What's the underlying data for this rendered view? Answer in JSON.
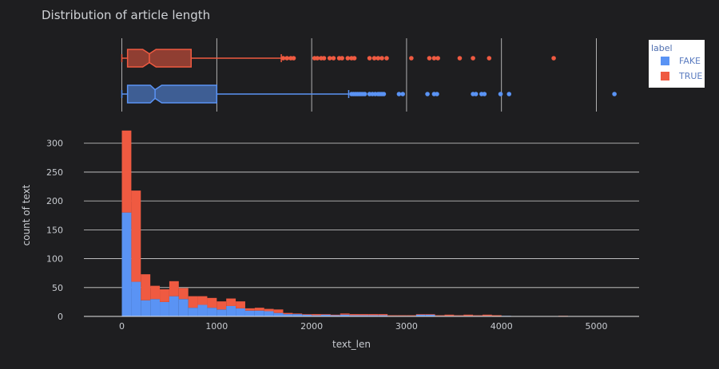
{
  "chart_data": {
    "type": "bar",
    "title": "Distribution of article length",
    "xlabel": "text_len",
    "ylabel": "count of text",
    "xlim": [
      -400,
      5450
    ],
    "ylim": [
      0,
      330
    ],
    "x_ticks": [
      0,
      1000,
      2000,
      3000,
      4000,
      5000
    ],
    "x_tick_labels": [
      "0",
      "1000",
      "2000",
      "3000",
      "4000",
      "5000"
    ],
    "y_ticks": [
      0,
      50,
      100,
      150,
      200,
      250,
      300
    ],
    "y_tick_labels": [
      "0",
      "50",
      "100",
      "150",
      "200",
      "250",
      "300"
    ],
    "barmode": "stack",
    "bin_start": 0,
    "bin_width": 100,
    "grid": true,
    "legend": {
      "title": "label",
      "placement": "top-right"
    },
    "series": [
      {
        "name": "FAKE",
        "color": "#636efa",
        "bar_color": "#5a93f4",
        "values": [
          180,
          60,
          28,
          30,
          25,
          35,
          30,
          15,
          20,
          15,
          12,
          18,
          14,
          10,
          10,
          9,
          6,
          4,
          4,
          3,
          2,
          3,
          2,
          3,
          2,
          2,
          2,
          2,
          1,
          1,
          1,
          3,
          3,
          1,
          1,
          1,
          1,
          1,
          1,
          0,
          1,
          0,
          0,
          0,
          0,
          0,
          0,
          0,
          0,
          0,
          0,
          0
        ]
      },
      {
        "name": "TRUE",
        "color": "#ef553b",
        "bar_color": "#ef5a41",
        "values": [
          142,
          158,
          45,
          23,
          22,
          26,
          19,
          20,
          15,
          17,
          14,
          13,
          12,
          4,
          5,
          4,
          6,
          2,
          1,
          1,
          2,
          1,
          1,
          2,
          2,
          2,
          2,
          2,
          1,
          1,
          1,
          1,
          1,
          1,
          2,
          1,
          2,
          1,
          2,
          2,
          0,
          0,
          0,
          0,
          0,
          0,
          1,
          0,
          0,
          0,
          0,
          0
        ]
      }
    ],
    "box_plots": [
      {
        "series": "TRUE",
        "min": 0,
        "q1": 60,
        "median": 290,
        "q3": 730,
        "upper_fence": 1680,
        "notch": [
          220,
          360
        ],
        "outliers": [
          1700,
          1740,
          1780,
          1810,
          2030,
          2060,
          2100,
          2130,
          2190,
          2230,
          2290,
          2320,
          2380,
          2420,
          2450,
          2610,
          2660,
          2700,
          2740,
          2790,
          3050,
          3240,
          3290,
          3330,
          3560,
          3700,
          3870,
          4550
        ]
      },
      {
        "series": "FAKE",
        "min": 0,
        "q1": 60,
        "median": 350,
        "q3": 1000,
        "upper_fence": 2390,
        "notch": [
          300,
          420
        ],
        "outliers": [
          2420,
          2440,
          2460,
          2480,
          2500,
          2520,
          2540,
          2560,
          2610,
          2640,
          2670,
          2700,
          2720,
          2740,
          2760,
          2920,
          2960,
          3220,
          3290,
          3320,
          3700,
          3730,
          3790,
          3820,
          3990,
          4080,
          5190
        ]
      }
    ]
  }
}
